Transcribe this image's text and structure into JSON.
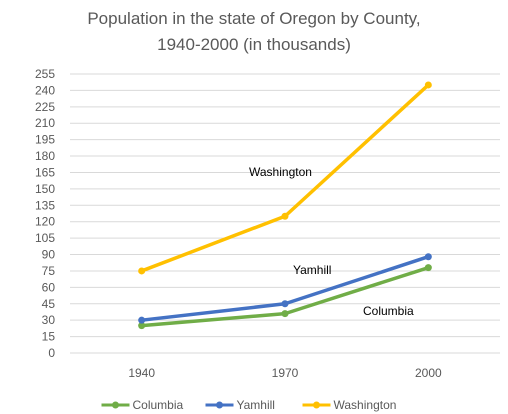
{
  "chart_data": {
    "type": "line",
    "title": "Population in the state of Oregon by County, 1940-2000 (in thousands)",
    "title_lines": [
      "Population in the state of Oregon by County,",
      "1940-2000 (in thousands)"
    ],
    "categories": [
      "1940",
      "1970",
      "2000"
    ],
    "ylim": [
      0,
      255
    ],
    "ytick_step": 15,
    "ytick_labels": [
      "0",
      "15",
      "30",
      "45",
      "60",
      "75",
      "90",
      "105",
      "120",
      "135",
      "150",
      "165",
      "180",
      "195",
      "210",
      "225",
      "240",
      "255"
    ],
    "grid": true,
    "legend": "bottom",
    "series": [
      {
        "name": "Columbia",
        "color": "#70ad47",
        "values": [
          25,
          36,
          78
        ]
      },
      {
        "name": "Yamhill",
        "color": "#4472c4",
        "values": [
          30,
          45,
          88
        ]
      },
      {
        "name": "Washington",
        "color": "#ffc000",
        "values": [
          75,
          125,
          245
        ]
      }
    ],
    "annotations": [
      {
        "text": "Washington",
        "series": "Washington"
      },
      {
        "text": "Yamhill",
        "series": "Yamhill"
      },
      {
        "text": "Columbia",
        "series": "Columbia"
      }
    ]
  }
}
